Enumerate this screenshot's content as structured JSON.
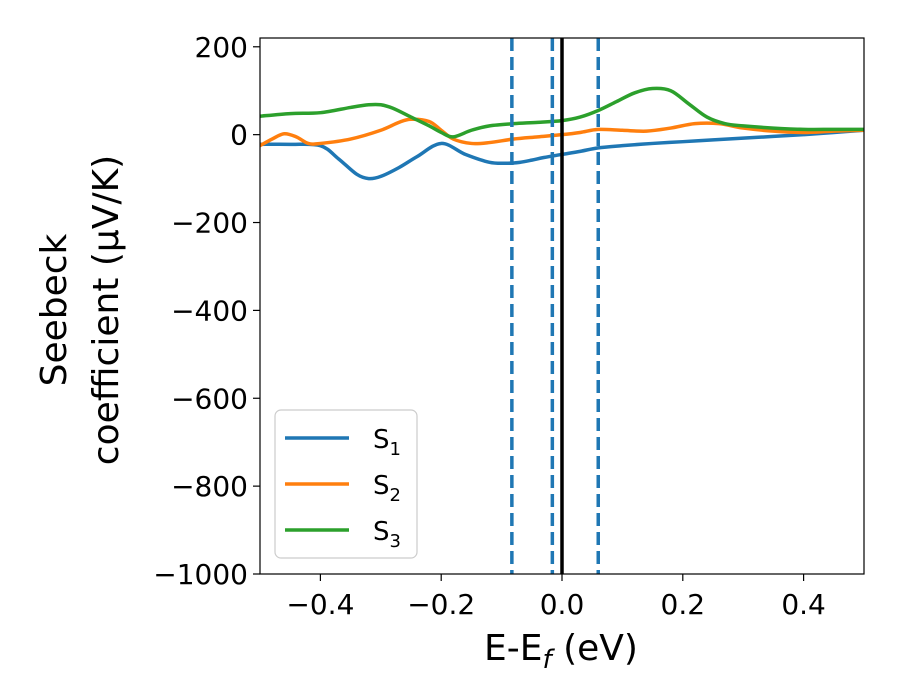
{
  "chart_data": {
    "type": "line",
    "xlabel": "E-E_f (eV)",
    "ylabel_line1": "Seebeck",
    "ylabel_line2": "coefficient  (μV/K)",
    "xlim": [
      -0.5,
      0.5
    ],
    "ylim": [
      -1000,
      220
    ],
    "xticks": [
      -0.4,
      -0.2,
      0.0,
      0.2,
      0.4
    ],
    "xtick_labels": [
      "−0.4",
      "−0.2",
      "0.0",
      "0.2",
      "0.4"
    ],
    "yticks": [
      200,
      0,
      -200,
      -400,
      -600,
      -800,
      -1000
    ],
    "ytick_labels": [
      "200",
      "0",
      "−200",
      "−400",
      "−600",
      "−800",
      "−1000"
    ],
    "grid": false,
    "legend_position": "lower-left",
    "vertical_lines": [
      {
        "x": 0.0,
        "style": "solid",
        "color": "#000000"
      },
      {
        "x": -0.083,
        "style": "dashed",
        "color": "#1f77b4"
      },
      {
        "x": -0.016,
        "style": "dashed",
        "color": "#1f77b4"
      },
      {
        "x": 0.06,
        "style": "dashed",
        "color": "#1f77b4"
      }
    ],
    "series": [
      {
        "name": "S1",
        "label_base": "S",
        "label_sub": "1",
        "color": "#1f77b4",
        "x": [
          -0.5,
          -0.45,
          -0.4,
          -0.37,
          -0.34,
          -0.32,
          -0.3,
          -0.27,
          -0.24,
          -0.2,
          -0.16,
          -0.12,
          -0.09,
          -0.07,
          -0.05,
          -0.03,
          0.0,
          0.03,
          0.06,
          0.1,
          0.15,
          0.2,
          0.25,
          0.3,
          0.35,
          0.4,
          0.45,
          0.5
        ],
        "y": [
          -22,
          -22,
          -25,
          -55,
          -90,
          -100,
          -95,
          -75,
          -50,
          -20,
          -45,
          -63,
          -65,
          -63,
          -58,
          -52,
          -45,
          -38,
          -30,
          -25,
          -20,
          -16,
          -12,
          -8,
          -4,
          0,
          5,
          10
        ]
      },
      {
        "name": "S2",
        "label_base": "S",
        "label_sub": "2",
        "color": "#ff7f0e",
        "x": [
          -0.5,
          -0.48,
          -0.46,
          -0.44,
          -0.42,
          -0.4,
          -0.35,
          -0.3,
          -0.27,
          -0.25,
          -0.22,
          -0.2,
          -0.18,
          -0.15,
          -0.12,
          -0.08,
          -0.04,
          0.0,
          0.03,
          0.06,
          0.1,
          0.14,
          0.18,
          0.22,
          0.26,
          0.3,
          0.35,
          0.4,
          0.45,
          0.5
        ],
        "y": [
          -25,
          -10,
          2,
          -5,
          -20,
          -20,
          -10,
          10,
          28,
          35,
          30,
          10,
          -10,
          -20,
          -18,
          -10,
          -5,
          0,
          5,
          12,
          10,
          8,
          15,
          25,
          25,
          15,
          8,
          5,
          8,
          10
        ]
      },
      {
        "name": "S3",
        "label_base": "S",
        "label_sub": "3",
        "color": "#2ca02c",
        "x": [
          -0.5,
          -0.45,
          -0.4,
          -0.35,
          -0.32,
          -0.3,
          -0.28,
          -0.25,
          -0.22,
          -0.2,
          -0.18,
          -0.15,
          -0.12,
          -0.08,
          -0.04,
          0.0,
          0.03,
          0.06,
          0.09,
          0.12,
          0.15,
          0.18,
          0.21,
          0.24,
          0.27,
          0.3,
          0.35,
          0.4,
          0.45,
          0.5
        ],
        "y": [
          42,
          48,
          50,
          62,
          68,
          68,
          60,
          40,
          20,
          5,
          -5,
          10,
          20,
          25,
          28,
          32,
          40,
          55,
          75,
          95,
          105,
          100,
          70,
          40,
          25,
          20,
          15,
          12,
          12,
          12
        ]
      }
    ]
  }
}
